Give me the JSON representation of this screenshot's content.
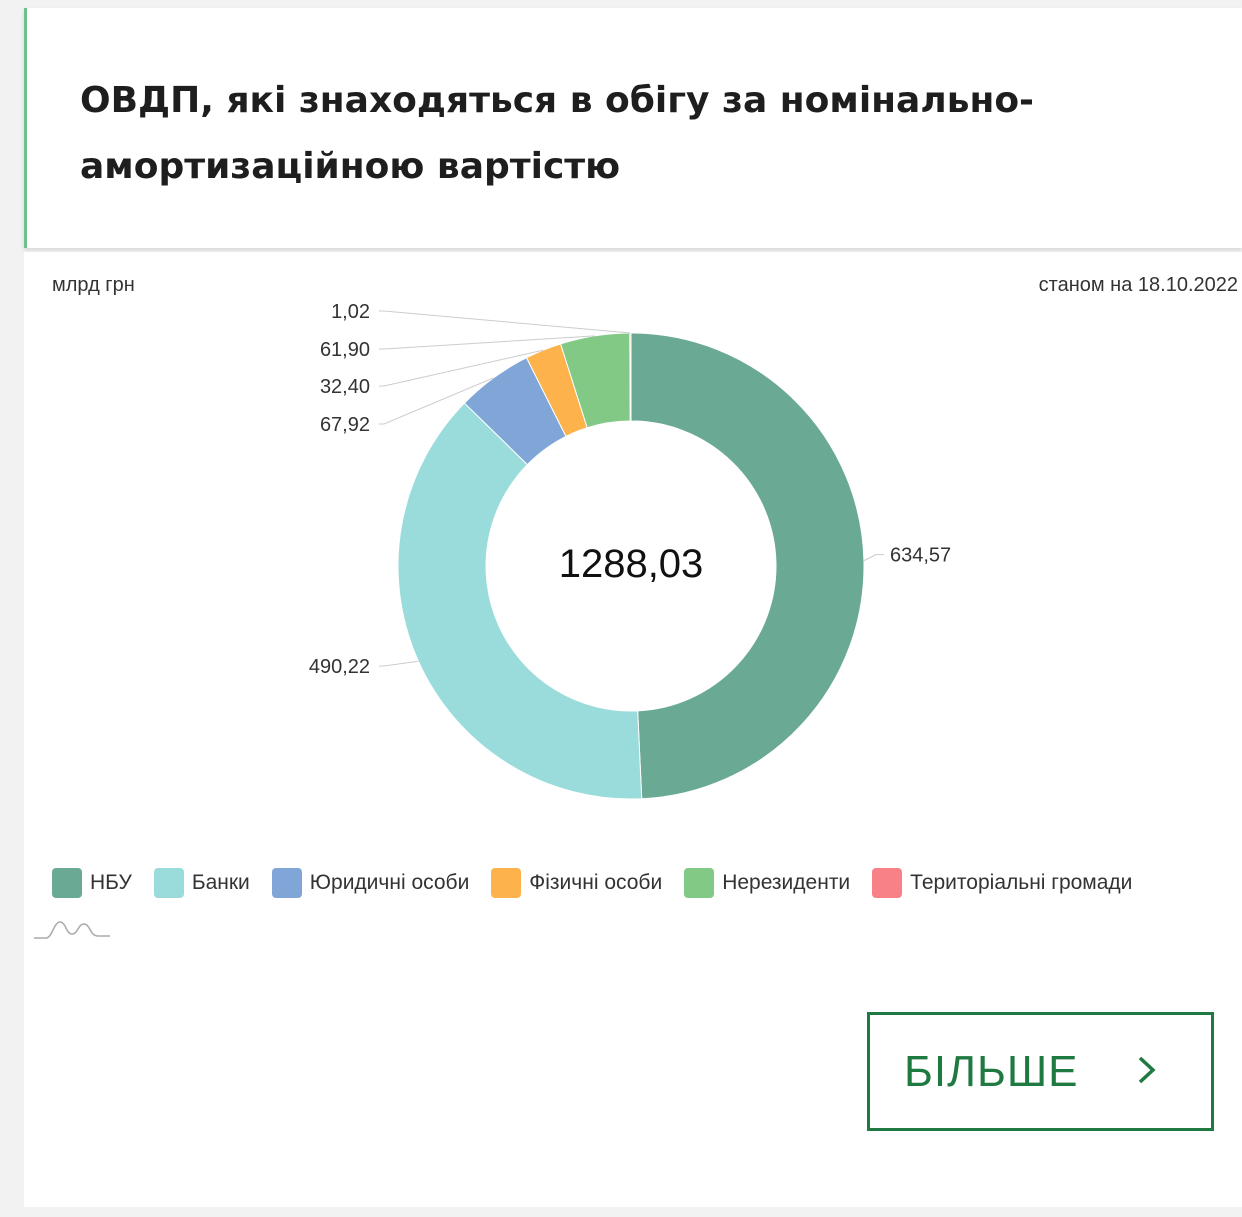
{
  "header": {
    "title_line1": "ОВДП, які знаходяться в обігу за номінально-",
    "title_line2": "амортизаційною вартістю"
  },
  "unit_label": "млрд грн",
  "date_label": "станом на 18.10.2022",
  "center_total": "1288,03",
  "more_button": {
    "label": "БІЛЬШЕ",
    "icon": "chevron-right-icon"
  },
  "colors": {
    "НБУ": "#6aa994",
    "Банки": "#99dcdb",
    "Юридичні особи": "#7fa6d6",
    "Фізичні особи": "#fdb24b",
    "Нерезиденти": "#82c986",
    "Територіальні громади": "#f78186",
    "accent": "#1f7a42"
  },
  "chart_data": {
    "type": "donut",
    "unit": "млрд грн",
    "total": 1288.03,
    "slices": [
      {
        "name": "НБУ",
        "value": 634.57,
        "label": "634,57"
      },
      {
        "name": "Банки",
        "value": 490.22,
        "label": "490,22"
      },
      {
        "name": "Юридичні особи",
        "value": 67.92,
        "label": "67,92"
      },
      {
        "name": "Фізичні особи",
        "value": 32.4,
        "label": "32,40"
      },
      {
        "name": "Нерезиденти",
        "value": 61.9,
        "label": "61,90"
      },
      {
        "name": "Територіальні громади",
        "value": 1.02,
        "label": "1,02"
      }
    ],
    "legend": [
      "НБУ",
      "Банки",
      "Юридичні особи",
      "Фізичні особи",
      "Нерезиденти",
      "Територіальні громади"
    ],
    "legend_position": "bottom"
  }
}
